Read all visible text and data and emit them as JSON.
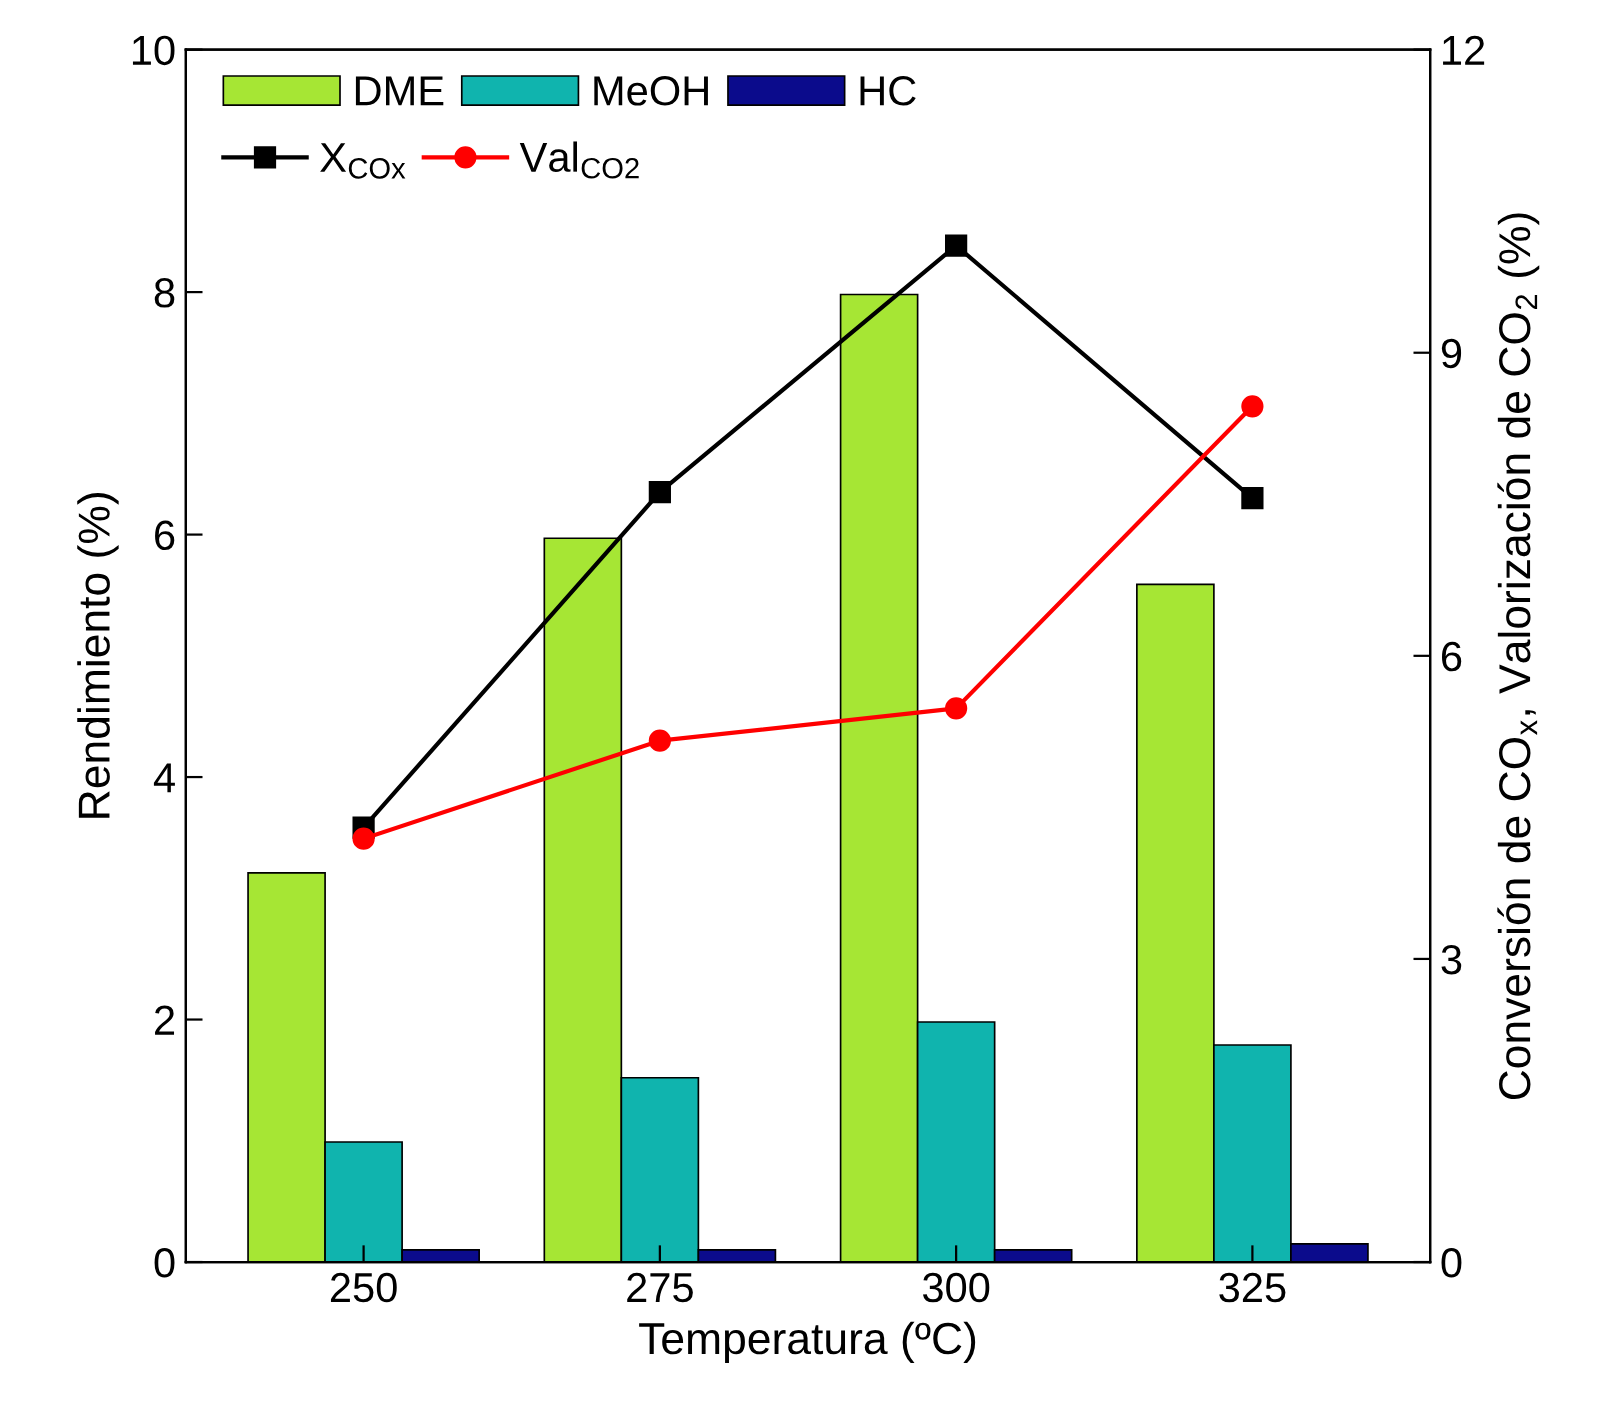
{
  "chart_data": {
    "type": "bar",
    "xlabel": "Temperatura (ºC)",
    "ylabel": "Rendimiento (%)",
    "y2label": "Conversión de CO$_{x}$, Valorización de CO$_{2}$ (%)",
    "categories": [
      "250",
      "275",
      "300",
      "325"
    ],
    "ylim": [
      0,
      10
    ],
    "yticks": [
      0,
      2,
      4,
      6,
      8,
      10
    ],
    "y2lim": [
      0,
      12
    ],
    "y2ticks": [
      0,
      3,
      6,
      9,
      12
    ],
    "grid": false,
    "legend": "top left",
    "series": [
      {
        "name": "DME",
        "color": "#a6e634",
        "values": [
          3.21,
          5.97,
          7.98,
          5.59
        ]
      },
      {
        "name": "MeOH",
        "color": "#10b4ae",
        "values": [
          0.99,
          1.52,
          1.98,
          1.79
        ]
      },
      {
        "name": "HC",
        "color": "#0b0b8c",
        "values": [
          0.1,
          0.1,
          0.1,
          0.15
        ]
      },
      {
        "name": "X$_{COx}$",
        "type": "line",
        "axis": "y2",
        "color": "#000000",
        "marker": "square",
        "values": [
          4.3,
          7.62,
          10.06,
          7.56
        ]
      },
      {
        "name": "Val$_{CO2}$",
        "type": "line",
        "axis": "y2",
        "color": "#ff0000",
        "marker": "circle",
        "values": [
          4.19,
          5.16,
          5.48,
          8.47
        ]
      }
    ]
  }
}
